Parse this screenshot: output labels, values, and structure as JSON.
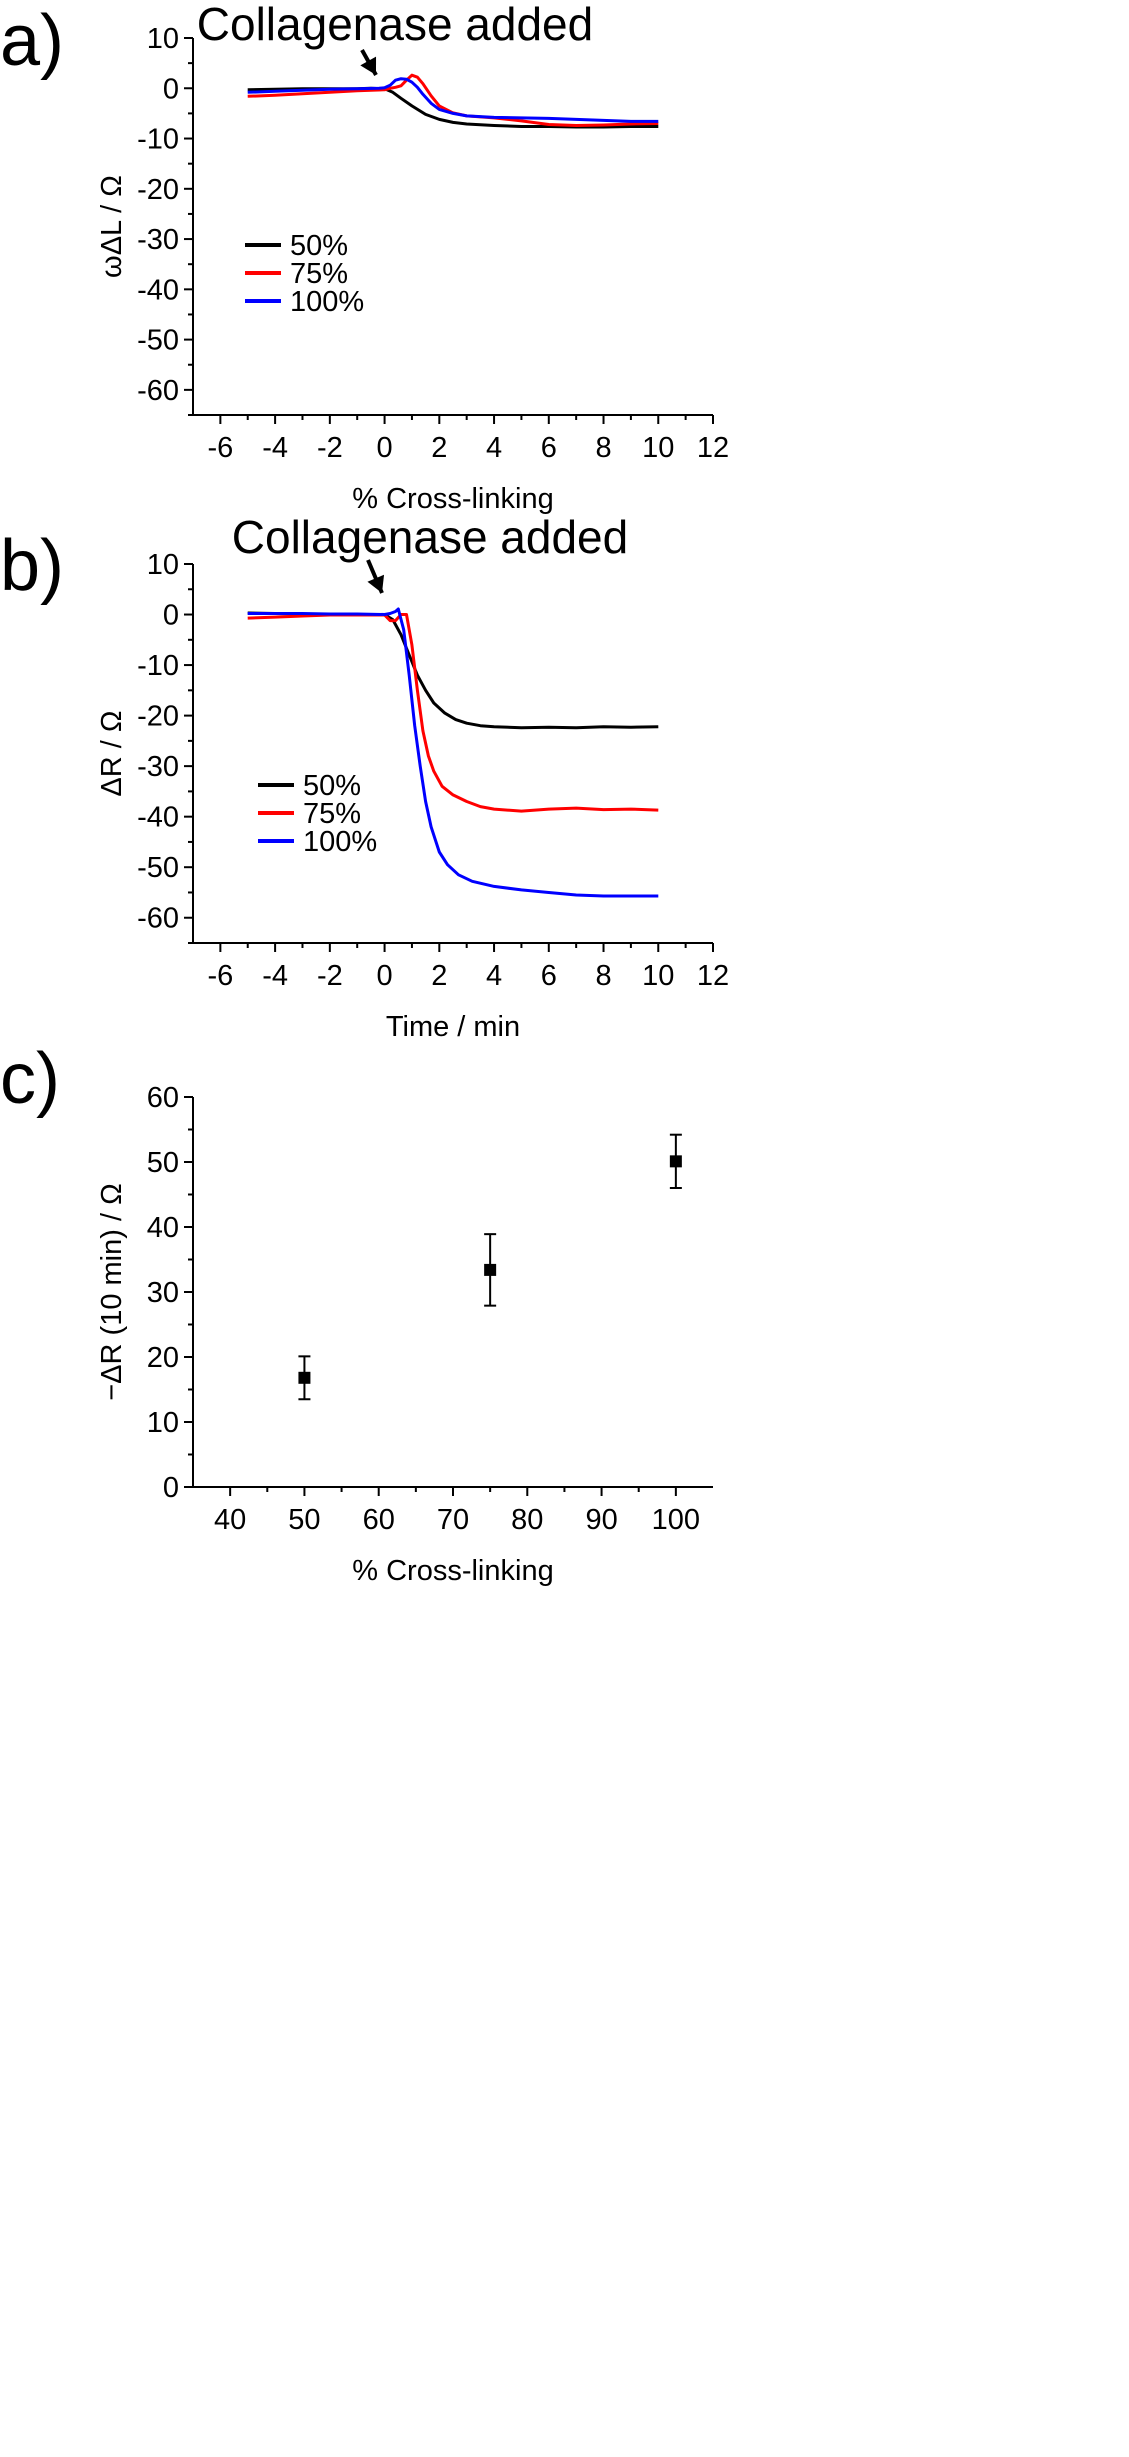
{
  "chart_data": [
    {
      "panel": "a)",
      "type": "line",
      "title": "",
      "annotation": "Collagenase added",
      "xlabel": "% Cross-linking",
      "ylabel": "ωΔL / Ω",
      "xlim": [
        -7,
        12
      ],
      "ylim": [
        -65,
        10
      ],
      "xticks": [
        -6,
        -4,
        -2,
        0,
        2,
        4,
        6,
        8,
        10,
        12
      ],
      "yticks": [
        10,
        0,
        -10,
        -20,
        -30,
        -40,
        -50,
        -60
      ],
      "legend": "center-left",
      "series": [
        {
          "name": "50%",
          "color": "#000000",
          "x": [
            -5,
            -4,
            -3,
            -2,
            -1,
            -0.5,
            0,
            0.3,
            0.6,
            1,
            1.5,
            2,
            2.5,
            3,
            4,
            5,
            6,
            7,
            8,
            9,
            10
          ],
          "y": [
            -0.3,
            -0.2,
            -0.1,
            -0.1,
            -0.1,
            0,
            -0.1,
            -0.8,
            -2,
            -3.5,
            -5.2,
            -6.2,
            -6.8,
            -7.1,
            -7.4,
            -7.6,
            -7.6,
            -7.7,
            -7.7,
            -7.6,
            -7.6
          ]
        },
        {
          "name": "75%",
          "color": "#ff0000",
          "x": [
            -5,
            -4,
            -3,
            -2,
            -1,
            0,
            0.2,
            0.4,
            0.6,
            0.8,
            1,
            1.2,
            1.4,
            1.7,
            2,
            2.5,
            3,
            4,
            5,
            6,
            7,
            8,
            9,
            10
          ],
          "y": [
            -1.6,
            -1.4,
            -1.1,
            -0.8,
            -0.5,
            -0.3,
            0,
            0.2,
            0.5,
            1.6,
            2.6,
            2.2,
            0.9,
            -1.5,
            -3.5,
            -4.9,
            -5.5,
            -5.9,
            -6.5,
            -7.2,
            -7.4,
            -7.3,
            -7.1,
            -7.0
          ]
        },
        {
          "name": "100%",
          "color": "#0000ff",
          "x": [
            -5,
            -4,
            -3,
            -2,
            -1,
            -0.2,
            0,
            0.2,
            0.4,
            0.6,
            0.8,
            1,
            1.2,
            1.4,
            1.7,
            2,
            2.5,
            3,
            4,
            5,
            6,
            7,
            8,
            9,
            10
          ],
          "y": [
            -0.8,
            -0.6,
            -0.4,
            -0.2,
            -0.1,
            0,
            0.1,
            0.6,
            1.6,
            1.9,
            1.8,
            1.2,
            0.2,
            -1.2,
            -3.0,
            -4.2,
            -5.0,
            -5.5,
            -5.8,
            -5.9,
            -6.0,
            -6.2,
            -6.4,
            -6.6,
            -6.6
          ]
        }
      ]
    },
    {
      "panel": "b)",
      "type": "line",
      "title": "",
      "annotation": "Collagenase added",
      "xlabel": "Time / min",
      "ylabel": "ΔR / Ω",
      "xlim": [
        -7,
        12
      ],
      "ylim": [
        -65,
        10
      ],
      "xticks": [
        -6,
        -4,
        -2,
        0,
        2,
        4,
        6,
        8,
        10,
        12
      ],
      "yticks": [
        10,
        0,
        -10,
        -20,
        -30,
        -40,
        -50,
        -60
      ],
      "legend": "bottom-left",
      "series": [
        {
          "name": "50%",
          "color": "#000000",
          "x": [
            -5,
            -4,
            -3,
            -2,
            -1,
            0,
            0.3,
            0.6,
            0.9,
            1.2,
            1.5,
            1.8,
            2.2,
            2.6,
            3,
            3.5,
            4,
            5,
            6,
            7,
            8,
            9,
            10
          ],
          "y": [
            0.3,
            0.2,
            0.1,
            0.1,
            0,
            0,
            -1,
            -4,
            -8,
            -12,
            -15,
            -17.5,
            -19.5,
            -20.8,
            -21.5,
            -22,
            -22.2,
            -22.4,
            -22.3,
            -22.4,
            -22.2,
            -22.3,
            -22.2
          ]
        },
        {
          "name": "75%",
          "color": "#ff0000",
          "x": [
            -5,
            -4,
            -3,
            -2,
            -1,
            0,
            0.2,
            0.4,
            0.6,
            0.8,
            1,
            1.2,
            1.4,
            1.6,
            1.8,
            2.1,
            2.5,
            3,
            3.5,
            4,
            5,
            6,
            7,
            8,
            9,
            10
          ],
          "y": [
            -0.7,
            -0.5,
            -0.3,
            -0.1,
            -0.1,
            -0.1,
            -1.2,
            -1.2,
            0,
            0,
            -6,
            -15,
            -23,
            -28,
            -31,
            -34,
            -35.7,
            -37,
            -38,
            -38.5,
            -38.9,
            -38.5,
            -38.3,
            -38.6,
            -38.5,
            -38.7
          ]
        },
        {
          "name": "100%",
          "color": "#0000ff",
          "x": [
            -5,
            -4,
            -3,
            -2,
            -1,
            0,
            0.2,
            0.4,
            0.5,
            0.7,
            0.9,
            1.1,
            1.3,
            1.5,
            1.7,
            2,
            2.3,
            2.7,
            3.2,
            4,
            5,
            6,
            7,
            8,
            9,
            10
          ],
          "y": [
            0.2,
            0.2,
            0.2,
            0.1,
            0.1,
            0,
            0.2,
            0.6,
            1.1,
            -3,
            -12,
            -22,
            -30,
            -37,
            -42,
            -47,
            -49.5,
            -51.5,
            -52.8,
            -53.8,
            -54.5,
            -55,
            -55.5,
            -55.7,
            -55.7,
            -55.7
          ]
        }
      ]
    },
    {
      "panel": "c)",
      "type": "scatter",
      "title": "",
      "xlabel": "% Cross-linking",
      "ylabel": "−ΔR (10 min) / Ω",
      "xlim": [
        35,
        105
      ],
      "ylim": [
        0,
        60
      ],
      "xticks": [
        40,
        50,
        60,
        70,
        80,
        90,
        100
      ],
      "yticks": [
        0,
        10,
        20,
        30,
        40,
        50,
        60
      ],
      "legend": "none",
      "series": [
        {
          "name": "−ΔR (10 min)",
          "color": "#000000",
          "x": [
            50,
            75,
            100
          ],
          "y": [
            16.8,
            33.4,
            50.1
          ],
          "error": [
            3.3,
            5.5,
            4.1
          ]
        }
      ]
    }
  ]
}
